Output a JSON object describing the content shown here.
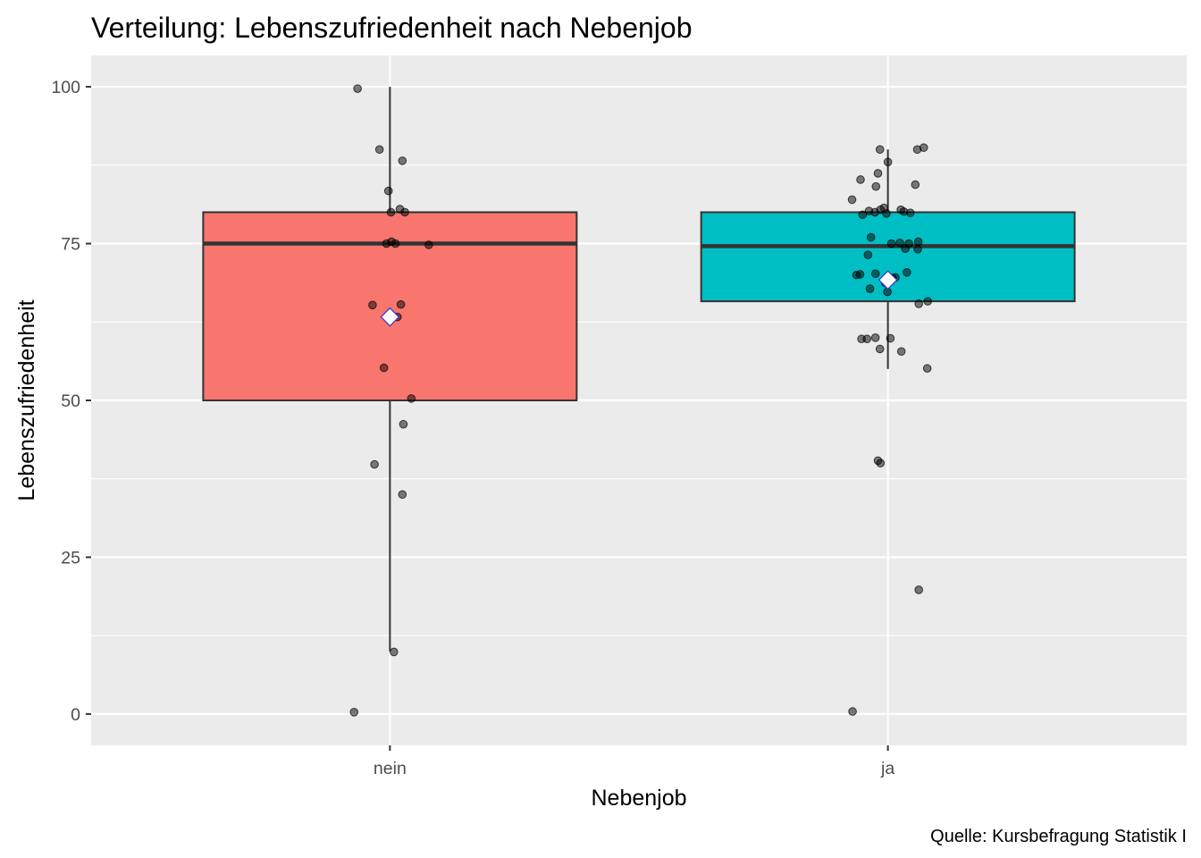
{
  "chart_data": {
    "type": "boxplot",
    "title": "Verteilung: Lebenszufriedenheit nach Nebenjob",
    "xlabel": "Nebenjob",
    "ylabel": "Lebenszufriedenheit",
    "caption": "Quelle: Kursbefragung Statistik I",
    "ylim": [
      -5,
      105
    ],
    "yticks": [
      0,
      25,
      50,
      75,
      100
    ],
    "categories": [
      "nein",
      "ja"
    ],
    "grid": true,
    "legend": "none",
    "groups": [
      {
        "name": "nein",
        "color": "#F8766D",
        "q1": 50,
        "median": 75,
        "q3": 80,
        "whisker_low": 10,
        "whisker_high": 100,
        "mean": 63.3,
        "outliers": [
          0
        ],
        "points": [
          {
            "dx": -0.065,
            "y": 99.7
          },
          {
            "dx": -0.021,
            "y": 90
          },
          {
            "dx": 0.025,
            "y": 88.2
          },
          {
            "dx": -0.003,
            "y": 83.4
          },
          {
            "dx": 0.002,
            "y": 80
          },
          {
            "dx": 0.02,
            "y": 80.5
          },
          {
            "dx": 0.03,
            "y": 80
          },
          {
            "dx": -0.007,
            "y": 75
          },
          {
            "dx": 0.003,
            "y": 75.3
          },
          {
            "dx": 0.011,
            "y": 75
          },
          {
            "dx": 0.078,
            "y": 74.8
          },
          {
            "dx": -0.035,
            "y": 65.2
          },
          {
            "dx": 0.022,
            "y": 65.3
          },
          {
            "dx": 0.015,
            "y": 63.3
          },
          {
            "dx": -0.012,
            "y": 55.2
          },
          {
            "dx": 0.043,
            "y": 50.3
          },
          {
            "dx": 0.027,
            "y": 46.2
          },
          {
            "dx": -0.031,
            "y": 39.8
          },
          {
            "dx": 0.025,
            "y": 35
          },
          {
            "dx": 0.008,
            "y": 9.9
          },
          {
            "dx": -0.072,
            "y": 0.3
          }
        ]
      },
      {
        "name": "ja",
        "color": "#00BFC4",
        "q1": 65.8,
        "median": 74.6,
        "q3": 80,
        "whisker_low": 55,
        "whisker_high": 90,
        "mean": 69.2,
        "outliers": [
          40,
          20,
          0
        ],
        "points": [
          {
            "dx": -0.016,
            "y": 90
          },
          {
            "dx": 0.059,
            "y": 90
          },
          {
            "dx": 0.072,
            "y": 90.3
          },
          {
            "dx": 0.0,
            "y": 88
          },
          {
            "dx": -0.02,
            "y": 86.2
          },
          {
            "dx": -0.055,
            "y": 85.2
          },
          {
            "dx": 0.055,
            "y": 84.4
          },
          {
            "dx": -0.024,
            "y": 84.1
          },
          {
            "dx": -0.072,
            "y": 82
          },
          {
            "dx": -0.038,
            "y": 80.2
          },
          {
            "dx": -0.026,
            "y": 80
          },
          {
            "dx": -0.015,
            "y": 80.4
          },
          {
            "dx": -0.008,
            "y": 80.7
          },
          {
            "dx": -0.003,
            "y": 79.8
          },
          {
            "dx": 0.026,
            "y": 80.4
          },
          {
            "dx": 0.032,
            "y": 80.1
          },
          {
            "dx": 0.045,
            "y": 79.9
          },
          {
            "dx": -0.051,
            "y": 79.6
          },
          {
            "dx": -0.034,
            "y": 76
          },
          {
            "dx": 0.007,
            "y": 75
          },
          {
            "dx": 0.024,
            "y": 75.1
          },
          {
            "dx": 0.042,
            "y": 75
          },
          {
            "dx": 0.061,
            "y": 75.3
          },
          {
            "dx": 0.035,
            "y": 74.2
          },
          {
            "dx": 0.06,
            "y": 74.1
          },
          {
            "dx": -0.04,
            "y": 73.2
          },
          {
            "dx": -0.063,
            "y": 70
          },
          {
            "dx": -0.056,
            "y": 70.1
          },
          {
            "dx": -0.025,
            "y": 70.2
          },
          {
            "dx": 0.038,
            "y": 70.4
          },
          {
            "dx": 0.009,
            "y": 69.5
          },
          {
            "dx": -0.005,
            "y": 68.7
          },
          {
            "dx": 0.015,
            "y": 69.6
          },
          {
            "dx": -0.036,
            "y": 67.8
          },
          {
            "dx": -0.001,
            "y": 67.3
          },
          {
            "dx": 0.062,
            "y": 65.4
          },
          {
            "dx": 0.08,
            "y": 65.8
          },
          {
            "dx": -0.053,
            "y": 59.8
          },
          {
            "dx": -0.042,
            "y": 59.8
          },
          {
            "dx": -0.025,
            "y": 60
          },
          {
            "dx": 0.005,
            "y": 59.9
          },
          {
            "dx": -0.016,
            "y": 58.2
          },
          {
            "dx": 0.027,
            "y": 57.8
          },
          {
            "dx": 0.079,
            "y": 55.1
          },
          {
            "dx": -0.02,
            "y": 40.4
          },
          {
            "dx": -0.015,
            "y": 40
          },
          {
            "dx": 0.062,
            "y": 19.8
          },
          {
            "dx": -0.071,
            "y": 0.4
          }
        ]
      }
    ]
  }
}
